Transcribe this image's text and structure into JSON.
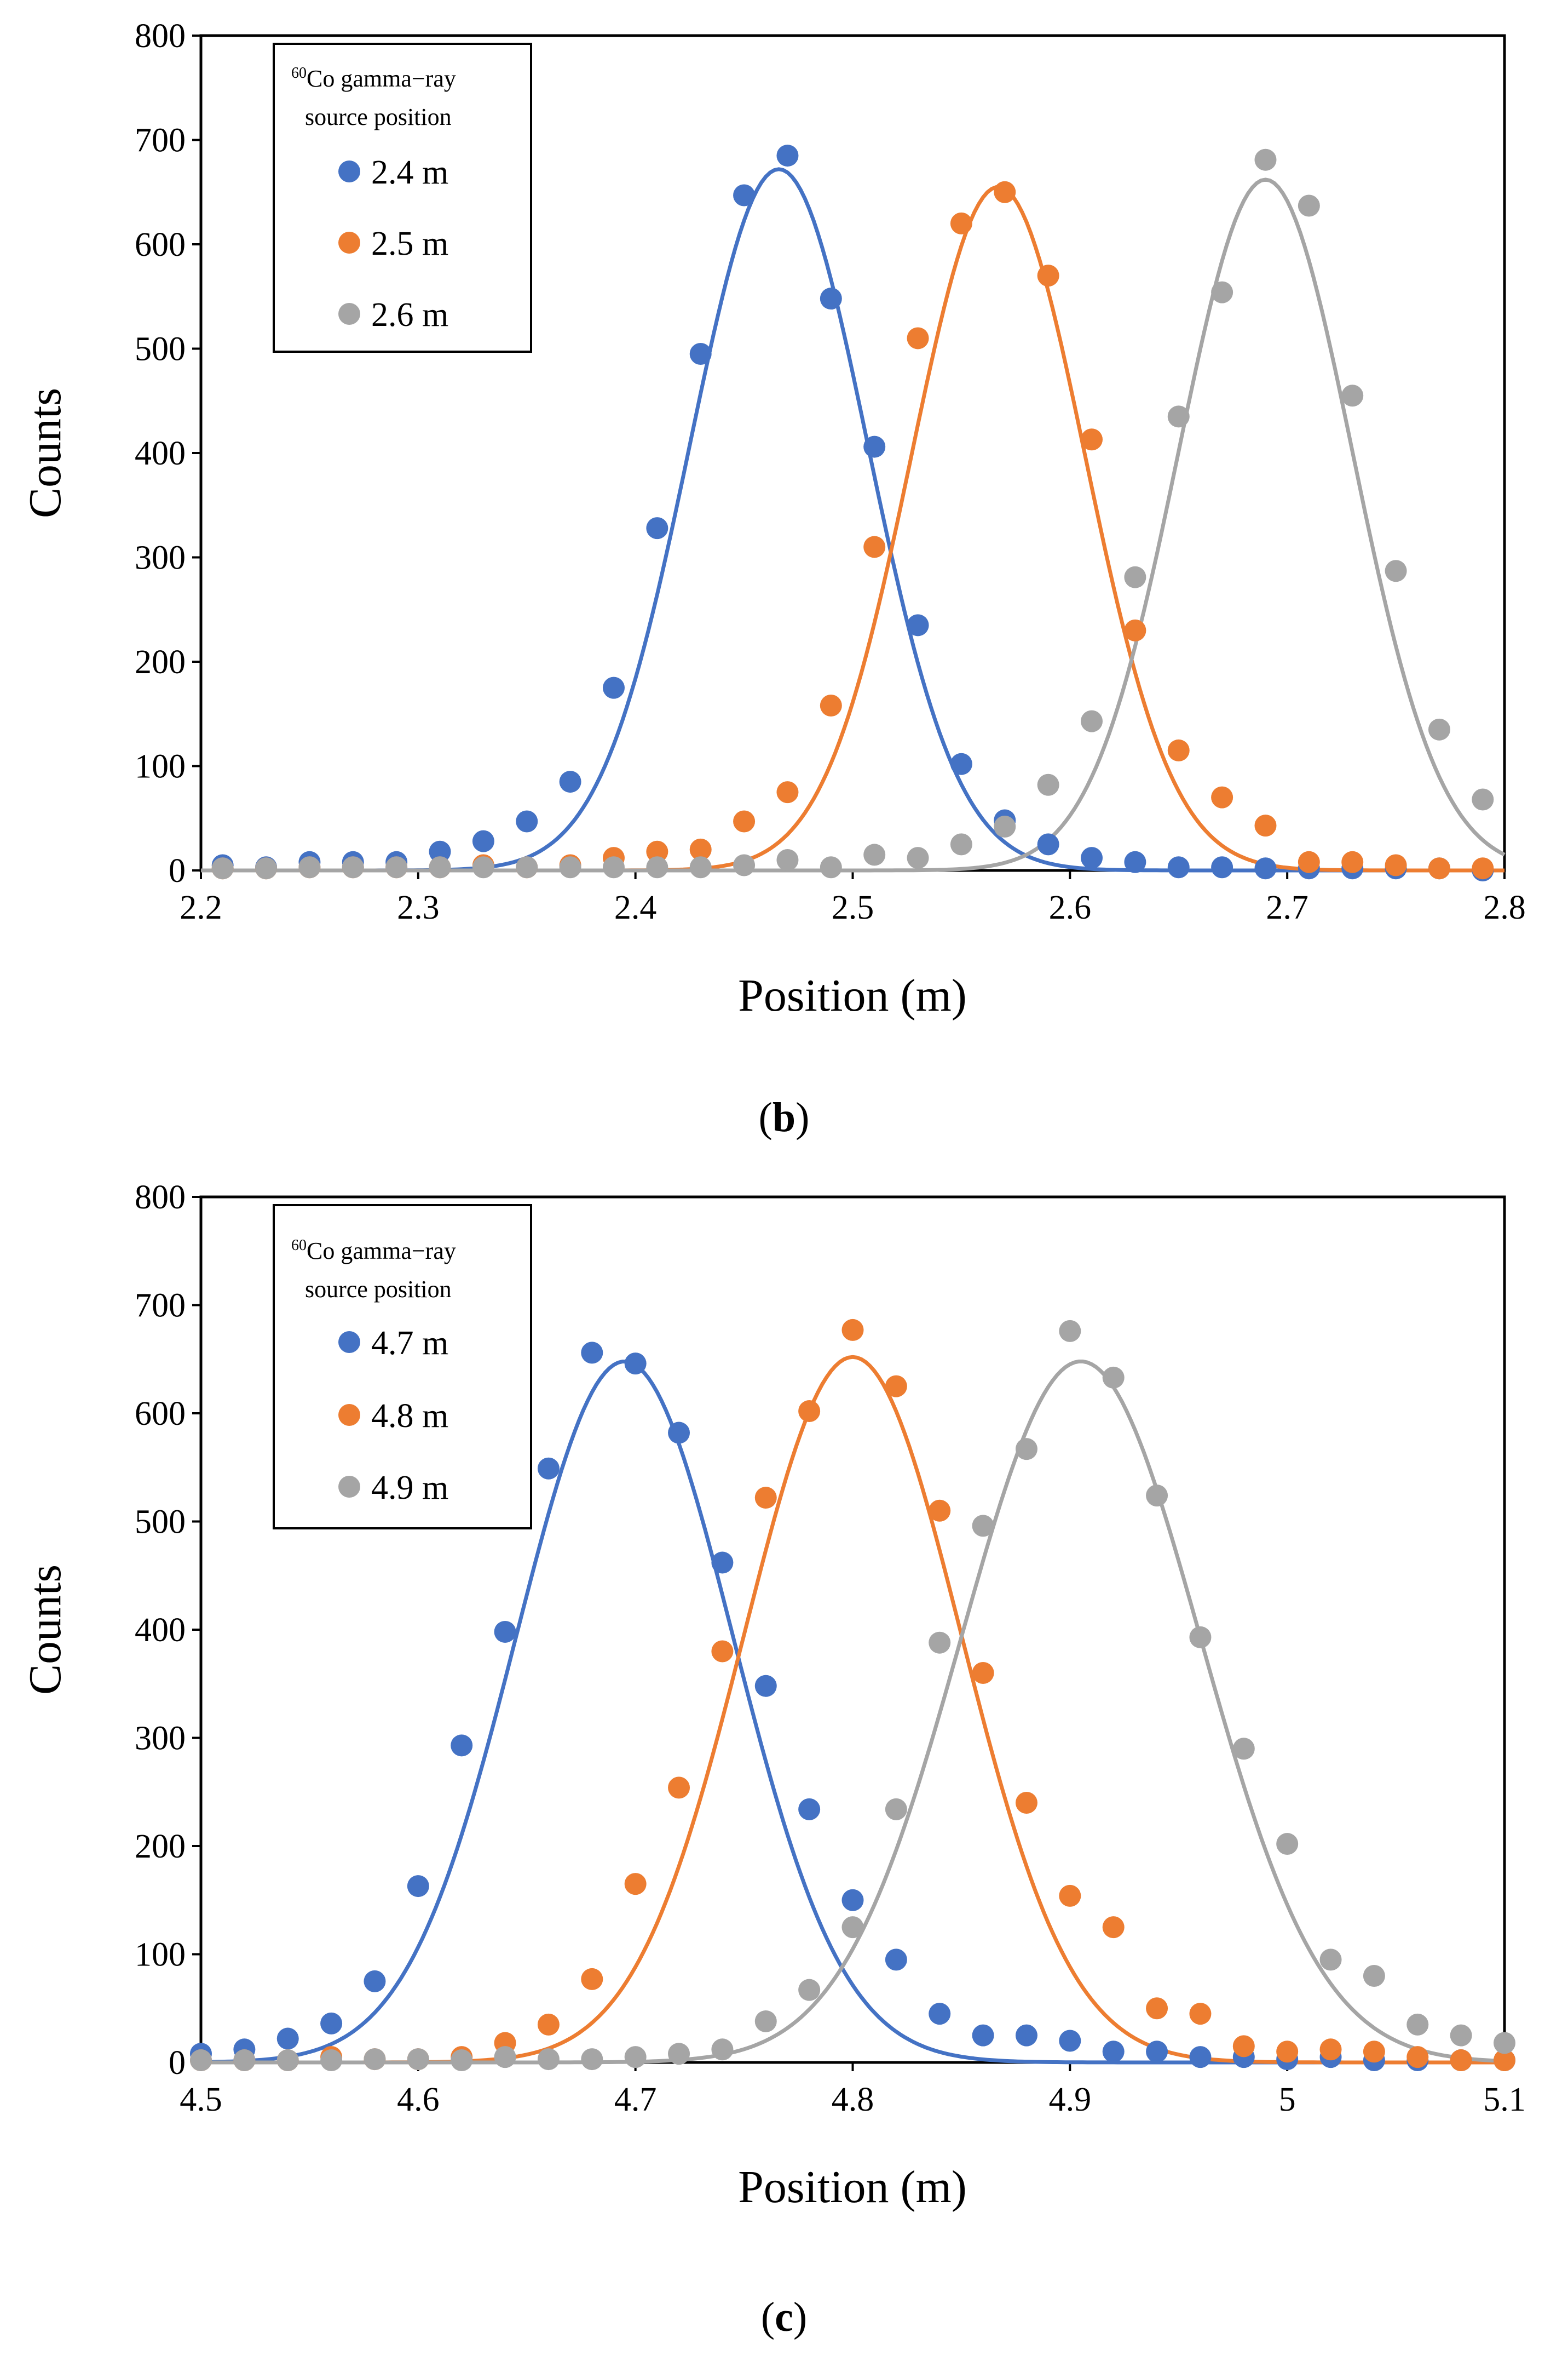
{
  "chart_data": [
    {
      "type": "scatter",
      "caption_letter": "b",
      "xlabel": "Position (m)",
      "ylabel": "Counts",
      "xlim": [
        2.2,
        2.8
      ],
      "ylim": [
        0,
        800
      ],
      "xticks": [
        2.2,
        2.3,
        2.4,
        2.5,
        2.6,
        2.7,
        2.8
      ],
      "xtick_labels": [
        "2.2",
        "2.3",
        "2.4",
        "2.5",
        "2.6",
        "2.7",
        "2.8"
      ],
      "yticks": [
        0,
        100,
        200,
        300,
        400,
        500,
        600,
        700,
        800
      ],
      "ytick_labels": [
        "0",
        "100",
        "200",
        "300",
        "400",
        "500",
        "600",
        "700",
        "800"
      ],
      "legend": {
        "title_sup": "60",
        "title_line1": "Co gamma−ray",
        "title_line2": "source position",
        "placement": "top-left"
      },
      "series": [
        {
          "name": "2.4 m",
          "color": "#4472C4",
          "fit": {
            "amplitude": 672,
            "mean": 2.466,
            "sigma": 0.041
          },
          "points": [
            [
              2.21,
              5
            ],
            [
              2.23,
              3
            ],
            [
              2.25,
              8
            ],
            [
              2.27,
              8
            ],
            [
              2.29,
              8
            ],
            [
              2.31,
              18
            ],
            [
              2.33,
              28
            ],
            [
              2.35,
              47
            ],
            [
              2.37,
              85
            ],
            [
              2.39,
              175
            ],
            [
              2.41,
              328
            ],
            [
              2.43,
              495
            ],
            [
              2.45,
              647
            ],
            [
              2.47,
              685
            ],
            [
              2.49,
              548
            ],
            [
              2.51,
              406
            ],
            [
              2.53,
              235
            ],
            [
              2.55,
              102
            ],
            [
              2.57,
              48
            ],
            [
              2.59,
              25
            ],
            [
              2.61,
              12
            ],
            [
              2.63,
              8
            ],
            [
              2.65,
              3
            ],
            [
              2.67,
              3
            ],
            [
              2.69,
              2
            ],
            [
              2.71,
              2
            ],
            [
              2.73,
              2
            ],
            [
              2.75,
              2
            ],
            [
              2.77,
              2
            ],
            [
              2.79,
              0
            ]
          ]
        },
        {
          "name": "2.5 m",
          "color": "#ED7D31",
          "fit": {
            "amplitude": 655,
            "mean": 2.567,
            "sigma": 0.04
          },
          "points": [
            [
              2.21,
              2
            ],
            [
              2.23,
              2
            ],
            [
              2.25,
              3
            ],
            [
              2.27,
              3
            ],
            [
              2.29,
              3
            ],
            [
              2.31,
              3
            ],
            [
              2.33,
              5
            ],
            [
              2.35,
              3
            ],
            [
              2.37,
              5
            ],
            [
              2.39,
              12
            ],
            [
              2.41,
              18
            ],
            [
              2.43,
              20
            ],
            [
              2.45,
              47
            ],
            [
              2.47,
              75
            ],
            [
              2.49,
              158
            ],
            [
              2.51,
              310
            ],
            [
              2.53,
              510
            ],
            [
              2.55,
              620
            ],
            [
              2.57,
              650
            ],
            [
              2.59,
              570
            ],
            [
              2.61,
              413
            ],
            [
              2.63,
              230
            ],
            [
              2.65,
              115
            ],
            [
              2.67,
              70
            ],
            [
              2.69,
              43
            ],
            [
              2.71,
              8
            ],
            [
              2.73,
              8
            ],
            [
              2.75,
              5
            ],
            [
              2.77,
              2
            ],
            [
              2.79,
              2
            ]
          ]
        },
        {
          "name": "2.6 m",
          "color": "#A5A5A5",
          "fit": {
            "amplitude": 662,
            "mean": 2.69,
            "sigma": 0.04
          },
          "points": [
            [
              2.21,
              2
            ],
            [
              2.23,
              2
            ],
            [
              2.25,
              3
            ],
            [
              2.27,
              3
            ],
            [
              2.29,
              3
            ],
            [
              2.31,
              3
            ],
            [
              2.33,
              3
            ],
            [
              2.35,
              3
            ],
            [
              2.37,
              3
            ],
            [
              2.39,
              3
            ],
            [
              2.41,
              3
            ],
            [
              2.43,
              3
            ],
            [
              2.45,
              5
            ],
            [
              2.47,
              10
            ],
            [
              2.49,
              3
            ],
            [
              2.51,
              15
            ],
            [
              2.53,
              12
            ],
            [
              2.55,
              25
            ],
            [
              2.57,
              42
            ],
            [
              2.59,
              82
            ],
            [
              2.61,
              143
            ],
            [
              2.63,
              281
            ],
            [
              2.65,
              435
            ],
            [
              2.67,
              554
            ],
            [
              2.69,
              681
            ],
            [
              2.71,
              637
            ],
            [
              2.73,
              455
            ],
            [
              2.75,
              287
            ],
            [
              2.77,
              135
            ],
            [
              2.79,
              68
            ]
          ]
        }
      ]
    },
    {
      "type": "scatter",
      "caption_letter": "c",
      "xlabel": "Position (m)",
      "ylabel": "Counts",
      "xlim": [
        4.5,
        5.1
      ],
      "ylim": [
        0,
        800
      ],
      "xticks": [
        4.5,
        4.6,
        4.7,
        4.8,
        4.9,
        5.0,
        5.1
      ],
      "xtick_labels": [
        "4.5",
        "4.6",
        "4.7",
        "4.8",
        "4.9",
        "5",
        "5.1"
      ],
      "yticks": [
        0,
        100,
        200,
        300,
        400,
        500,
        600,
        700,
        800
      ],
      "ytick_labels": [
        "0",
        "100",
        "200",
        "300",
        "400",
        "500",
        "600",
        "700",
        "800"
      ],
      "legend": {
        "title_sup": "60",
        "title_line1": "Co gamma−ray",
        "title_line2": "source position",
        "placement": "top-left"
      },
      "series": [
        {
          "name": "4.7 m",
          "color": "#4472C4",
          "fit": {
            "amplitude": 648,
            "mean": 4.695,
            "sigma": 0.05
          },
          "points": [
            [
              4.5,
              8
            ],
            [
              4.52,
              12
            ],
            [
              4.54,
              22
            ],
            [
              4.56,
              36
            ],
            [
              4.58,
              75
            ],
            [
              4.6,
              163
            ],
            [
              4.62,
              293
            ],
            [
              4.64,
              398
            ],
            [
              4.66,
              549
            ],
            [
              4.68,
              656
            ],
            [
              4.7,
              646
            ],
            [
              4.72,
              582
            ],
            [
              4.74,
              462
            ],
            [
              4.76,
              348
            ],
            [
              4.78,
              234
            ],
            [
              4.8,
              150
            ],
            [
              4.82,
              95
            ],
            [
              4.84,
              45
            ],
            [
              4.86,
              25
            ],
            [
              4.88,
              25
            ],
            [
              4.9,
              20
            ],
            [
              4.92,
              10
            ],
            [
              4.94,
              10
            ],
            [
              4.96,
              5
            ],
            [
              4.98,
              5
            ],
            [
              5.0,
              3
            ],
            [
              5.02,
              5
            ],
            [
              5.04,
              2
            ],
            [
              5.06,
              2
            ],
            [
              5.08,
              2
            ],
            [
              5.1,
              2
            ]
          ]
        },
        {
          "name": "4.8 m",
          "color": "#ED7D31",
          "fit": {
            "amplitude": 652,
            "mean": 4.8,
            "sigma": 0.05
          },
          "points": [
            [
              4.5,
              2
            ],
            [
              4.52,
              2
            ],
            [
              4.54,
              2
            ],
            [
              4.56,
              5
            ],
            [
              4.58,
              3
            ],
            [
              4.6,
              3
            ],
            [
              4.62,
              5
            ],
            [
              4.64,
              18
            ],
            [
              4.66,
              35
            ],
            [
              4.68,
              77
            ],
            [
              4.7,
              165
            ],
            [
              4.72,
              254
            ],
            [
              4.74,
              380
            ],
            [
              4.76,
              522
            ],
            [
              4.78,
              602
            ],
            [
              4.8,
              677
            ],
            [
              4.82,
              625
            ],
            [
              4.84,
              510
            ],
            [
              4.86,
              360
            ],
            [
              4.88,
              240
            ],
            [
              4.9,
              154
            ],
            [
              4.92,
              125
            ],
            [
              4.94,
              50
            ],
            [
              4.96,
              45
            ],
            [
              4.98,
              15
            ],
            [
              5.0,
              10
            ],
            [
              5.02,
              12
            ],
            [
              5.04,
              10
            ],
            [
              5.06,
              5
            ],
            [
              5.08,
              2
            ],
            [
              5.1,
              2
            ]
          ]
        },
        {
          "name": "4.9 m",
          "color": "#A5A5A5",
          "fit": {
            "amplitude": 648,
            "mean": 4.905,
            "sigma": 0.055
          },
          "points": [
            [
              4.5,
              2
            ],
            [
              4.52,
              2
            ],
            [
              4.54,
              2
            ],
            [
              4.56,
              2
            ],
            [
              4.58,
              3
            ],
            [
              4.6,
              3
            ],
            [
              4.62,
              2
            ],
            [
              4.64,
              5
            ],
            [
              4.66,
              3
            ],
            [
              4.68,
              3
            ],
            [
              4.7,
              5
            ],
            [
              4.72,
              8
            ],
            [
              4.74,
              12
            ],
            [
              4.76,
              38
            ],
            [
              4.78,
              67
            ],
            [
              4.8,
              125
            ],
            [
              4.82,
              234
            ],
            [
              4.84,
              388
            ],
            [
              4.86,
              496
            ],
            [
              4.88,
              567
            ],
            [
              4.9,
              676
            ],
            [
              4.92,
              633
            ],
            [
              4.94,
              524
            ],
            [
              4.96,
              393
            ],
            [
              4.98,
              290
            ],
            [
              5.0,
              202
            ],
            [
              5.02,
              95
            ],
            [
              5.04,
              80
            ],
            [
              5.06,
              35
            ],
            [
              5.08,
              25
            ],
            [
              5.1,
              18
            ]
          ]
        }
      ]
    }
  ]
}
